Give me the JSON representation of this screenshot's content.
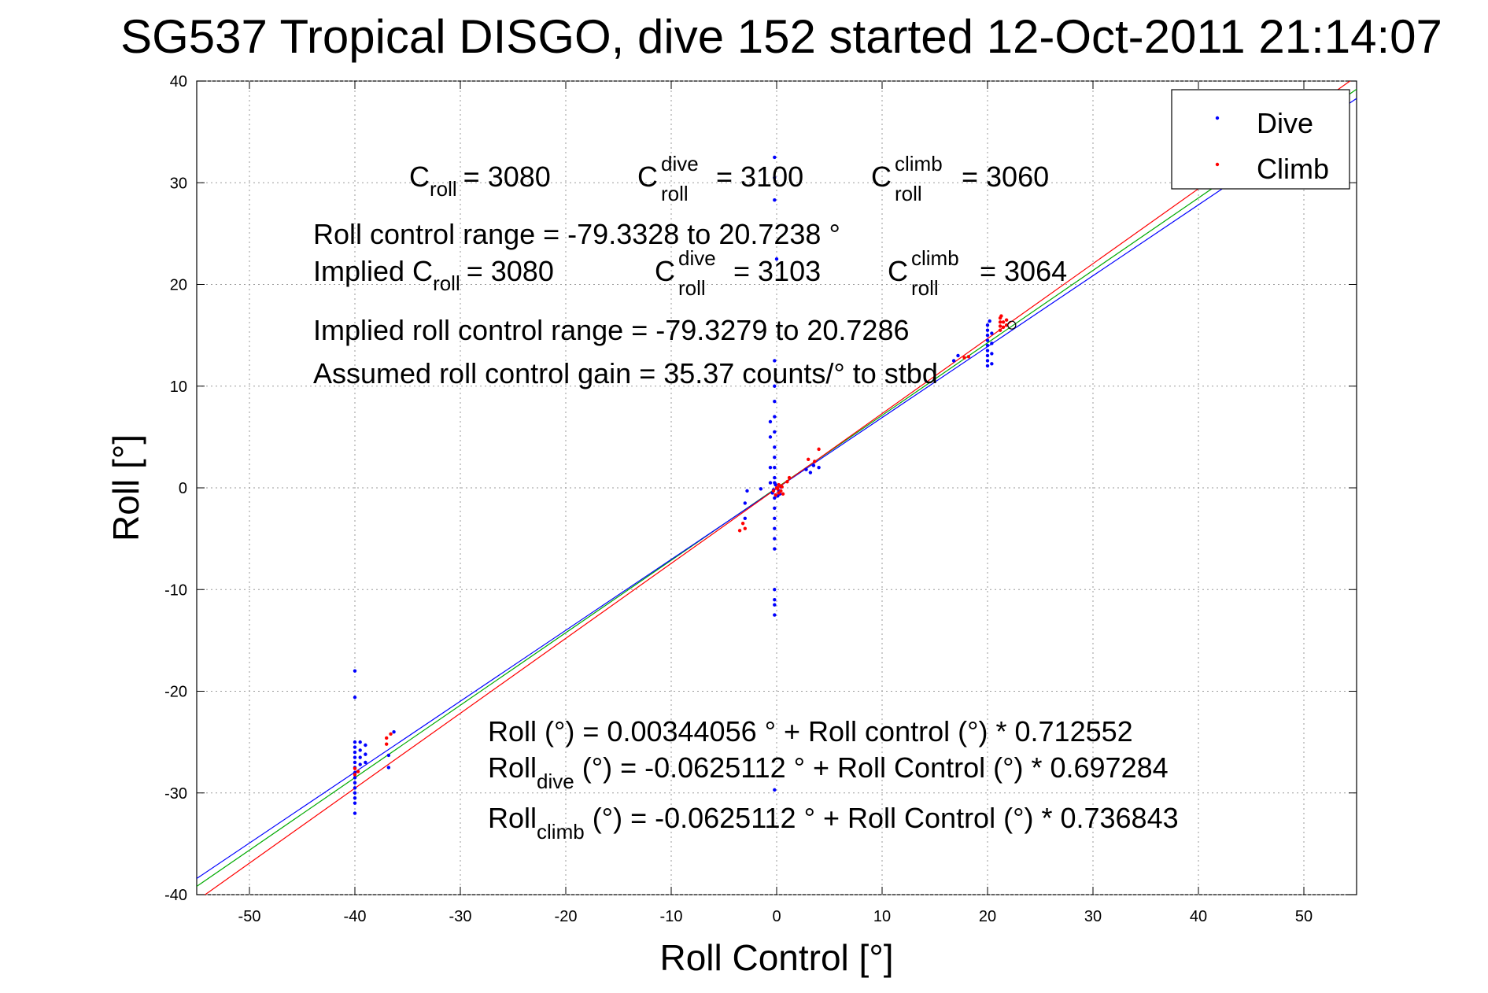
{
  "chart_data": {
    "type": "scatter",
    "title": "SG537 Tropical DISGO, dive 152 started 12-Oct-2011 21:14:07",
    "xlabel": "Roll Control [°]",
    "ylabel": "Roll [°]",
    "xlim": [
      -55,
      55
    ],
    "ylim": [
      -40,
      40
    ],
    "xticks": [
      -50,
      -40,
      -30,
      -20,
      -10,
      0,
      10,
      20,
      30,
      40,
      50
    ],
    "yticks": [
      -40,
      -30,
      -20,
      -10,
      0,
      10,
      20,
      30,
      40
    ],
    "xtick_labels": [
      "-50",
      "-40",
      "-30",
      "-20",
      "-10",
      "0",
      "10",
      "20",
      "30",
      "40",
      "50"
    ],
    "ytick_labels": [
      "-40",
      "-30",
      "-20",
      "-10",
      "0",
      "10",
      "20",
      "30",
      "40"
    ],
    "grid": true,
    "legend_position": "top-right",
    "series": [
      {
        "name": "Dive",
        "color": "#0000ff",
        "points": [
          [
            -40,
            -18
          ],
          [
            -40,
            -20.6
          ],
          [
            -40,
            -25
          ],
          [
            -40,
            -25.5
          ],
          [
            -40,
            -26
          ],
          [
            -40,
            -26.5
          ],
          [
            -40,
            -27
          ],
          [
            -40,
            -27.5
          ],
          [
            -40,
            -28
          ],
          [
            -40,
            -28.5
          ],
          [
            -40,
            -29
          ],
          [
            -40,
            -29.5
          ],
          [
            -40,
            -30
          ],
          [
            -40,
            -30.5
          ],
          [
            -40,
            -31
          ],
          [
            -40,
            -32
          ],
          [
            -39.5,
            -25
          ],
          [
            -39.5,
            -25.8
          ],
          [
            -39.5,
            -26.5
          ],
          [
            -39.5,
            -27.2
          ],
          [
            -39,
            -25.3
          ],
          [
            -39,
            -26.2
          ],
          [
            -39,
            -27
          ],
          [
            -36.8,
            -26.3
          ],
          [
            -36.8,
            -27.5
          ],
          [
            -36.3,
            -24
          ],
          [
            -0.2,
            32.5
          ],
          [
            -0.2,
            30.5
          ],
          [
            -0.2,
            28.3
          ],
          [
            0,
            22.5
          ],
          [
            -0.2,
            12.5
          ],
          [
            -0.2,
            10
          ],
          [
            -0.2,
            8.5
          ],
          [
            -0.2,
            7
          ],
          [
            -0.2,
            5.5
          ],
          [
            -0.2,
            4
          ],
          [
            -0.2,
            3
          ],
          [
            -0.2,
            2
          ],
          [
            -0.2,
            1
          ],
          [
            -0.2,
            0.5
          ],
          [
            -0.6,
            6.5
          ],
          [
            -0.6,
            5
          ],
          [
            -0.6,
            2
          ],
          [
            -0.6,
            0.5
          ],
          [
            -0.2,
            -1
          ],
          [
            -0.2,
            -2
          ],
          [
            -0.2,
            -3
          ],
          [
            -0.2,
            -4
          ],
          [
            -0.2,
            -5
          ],
          [
            -0.2,
            -6
          ],
          [
            -0.2,
            -10
          ],
          [
            -0.2,
            -11
          ],
          [
            -0.2,
            -11.5
          ],
          [
            -0.2,
            -12.5
          ],
          [
            -0.2,
            -29.7
          ],
          [
            0,
            0
          ],
          [
            0.2,
            -0.3
          ],
          [
            -0.4,
            -0.5
          ],
          [
            0.3,
            -0.6
          ],
          [
            -0.3,
            -0.2
          ],
          [
            0.1,
            -0.8
          ],
          [
            -0.1,
            0.3
          ],
          [
            0.4,
            0.1
          ],
          [
            -1.5,
            -0.1
          ],
          [
            -2.8,
            -0.3
          ],
          [
            -3,
            -1.5
          ],
          [
            -3,
            -3
          ],
          [
            2.8,
            1.8
          ],
          [
            3.2,
            1.5
          ],
          [
            3.5,
            2.2
          ],
          [
            4,
            2
          ],
          [
            16.8,
            12.5
          ],
          [
            17.2,
            13
          ],
          [
            20,
            16
          ],
          [
            20,
            15.5
          ],
          [
            20,
            15
          ],
          [
            20,
            14.5
          ],
          [
            20,
            14
          ],
          [
            20,
            13.5
          ],
          [
            20,
            13
          ],
          [
            20,
            12.5
          ],
          [
            20,
            12
          ],
          [
            20.4,
            15.2
          ],
          [
            20.4,
            14.2
          ],
          [
            20.4,
            13.2
          ],
          [
            20.4,
            12.2
          ],
          [
            20.2,
            16.4
          ]
        ]
      },
      {
        "name": "Climb",
        "color": "#ff0000",
        "points": [
          [
            -40,
            -27.6
          ],
          [
            -40,
            -28.2
          ],
          [
            -39.7,
            -27.9
          ],
          [
            -37,
            -24.6
          ],
          [
            -37,
            -25.2
          ],
          [
            -36.6,
            -24.2
          ],
          [
            -3.2,
            -3.5
          ],
          [
            -3.5,
            -4.2
          ],
          [
            -3,
            -4
          ],
          [
            0,
            0
          ],
          [
            0.1,
            -0.1
          ],
          [
            0.2,
            -0.5
          ],
          [
            0.3,
            0.2
          ],
          [
            -0.1,
            -0.7
          ],
          [
            0.4,
            -0.3
          ],
          [
            0.5,
            0.1
          ],
          [
            -0.3,
            -0.3
          ],
          [
            0.2,
            0.3
          ],
          [
            0.6,
            -0.6
          ],
          [
            1,
            0.6
          ],
          [
            1.2,
            1
          ],
          [
            3,
            2.8
          ],
          [
            3.6,
            2.6
          ],
          [
            4,
            3.8
          ],
          [
            17.8,
            12.8
          ],
          [
            18.2,
            12.9
          ],
          [
            21.2,
            15.5
          ],
          [
            21.2,
            15.9
          ],
          [
            21.2,
            16.3
          ],
          [
            21.2,
            16.7
          ],
          [
            21.5,
            15.8
          ],
          [
            21.5,
            16.3
          ],
          [
            21.8,
            16
          ],
          [
            21.8,
            16.5
          ],
          [
            21.3,
            16.9
          ]
        ]
      }
    ],
    "fit_lines": [
      {
        "label": "all",
        "color": "#00aa00",
        "intercept": 0.00344056,
        "slope": 0.712552
      },
      {
        "label": "dive",
        "color": "#0000ff",
        "intercept": -0.0625112,
        "slope": 0.697284
      },
      {
        "label": "climb",
        "color": "#ff0000",
        "intercept": -0.0625112,
        "slope": 0.736843
      }
    ],
    "open_marker": {
      "x": 22.3,
      "y": 16
    },
    "annotations": {
      "c_roll_label": "C",
      "c_roll_sub": "roll",
      "c_roll_value": "= 3080",
      "c_dive_sup": "dive",
      "c_dive_value": "= 3100",
      "c_climb_sup": "climb",
      "c_climb_value": "= 3060",
      "range": "Roll control range = -79.3328 to 20.7238 °",
      "implied_prefix": "Implied C",
      "implied_c_roll_value": "= 3080",
      "implied_c_dive_value": "= 3103",
      "implied_c_climb_value": "= 3064",
      "implied_range": "Implied roll control range = -79.3279 to 20.7286",
      "gain": "Assumed roll control gain = 35.37 counts/° to stbd",
      "eq1": "Roll (°) = 0.00344056 ° + Roll control (°) * 0.712552",
      "eq2_main": "Roll",
      "eq2_sub": "dive",
      "eq2_rest": " (°) = -0.0625112 ° + Roll Control (°) * 0.697284",
      "eq3_main": "Roll",
      "eq3_sub": "climb",
      "eq3_rest": " (°) = -0.0625112 ° + Roll Control (°) * 0.736843"
    }
  }
}
